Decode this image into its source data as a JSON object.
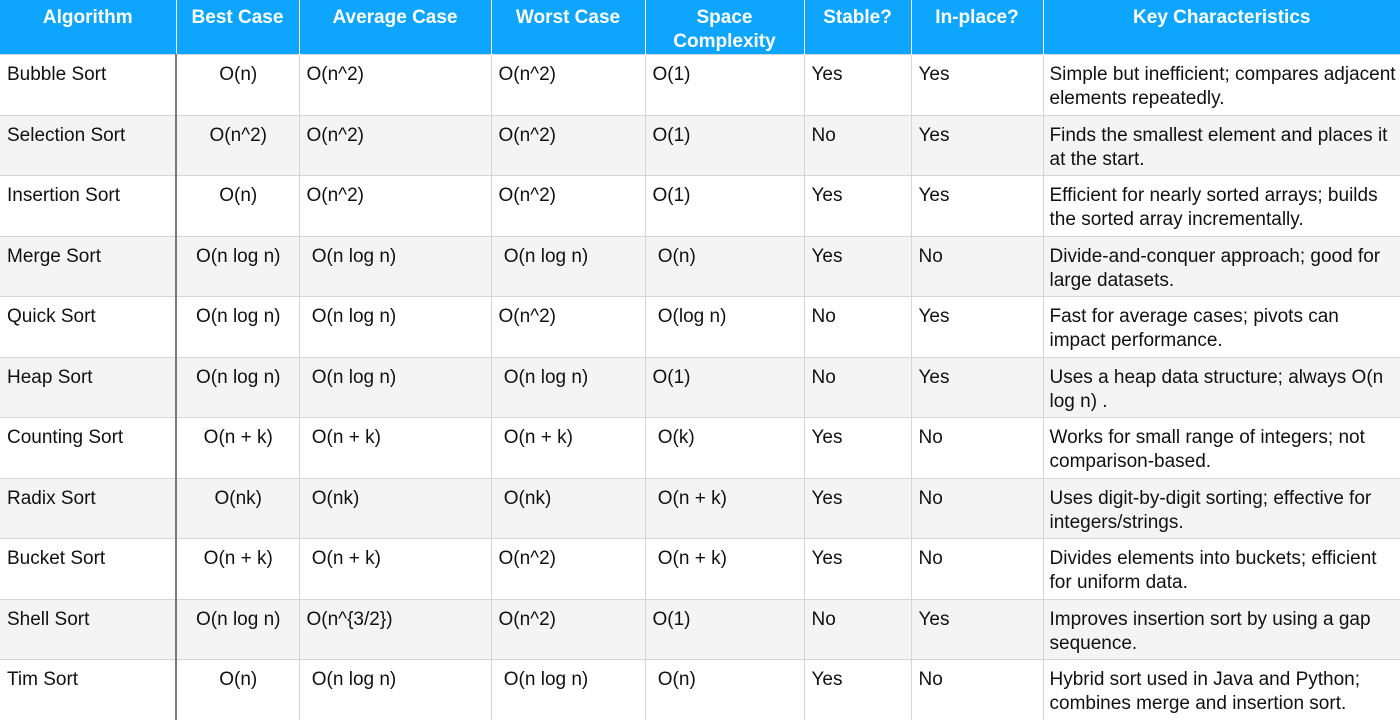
{
  "colors": {
    "header_bg": "#0ea5ff",
    "header_text": "#ffffff",
    "row_alt": "#f4f4f4"
  },
  "table": {
    "headers": [
      "Algorithm",
      "Best Case",
      "Average Case",
      "Worst Case",
      "Space Complexity",
      "Stable?",
      "In-place?",
      "Key Characteristics"
    ],
    "rows": [
      [
        "Bubble Sort",
        "O(n)",
        "O(n^2)",
        "O(n^2)",
        "O(1)",
        "Yes",
        "Yes",
        "Simple but inefficient; compares adjacent elements repeatedly."
      ],
      [
        "Selection Sort",
        "O(n^2)",
        "O(n^2)",
        "O(n^2)",
        "O(1)",
        "No",
        "Yes",
        "Finds the smallest element and places it at the start."
      ],
      [
        "Insertion Sort",
        "O(n)",
        "O(n^2)",
        "O(n^2)",
        "O(1)",
        "Yes",
        "Yes",
        "Efficient for nearly sorted arrays; builds the sorted array incrementally."
      ],
      [
        "Merge Sort",
        "O(n log n)",
        " O(n log n)",
        " O(n log n)",
        " O(n)",
        "Yes",
        "No",
        "Divide-and-conquer approach; good for large datasets."
      ],
      [
        "Quick Sort",
        "O(n log n)",
        " O(n log n)",
        "O(n^2)",
        " O(log n)",
        "No",
        "Yes",
        "Fast for average cases; pivots can impact performance."
      ],
      [
        "Heap Sort",
        "O(n log n)",
        " O(n log n)",
        " O(n log n)",
        "O(1)",
        "No",
        "Yes",
        "Uses a heap data structure; always O(n log n) ."
      ],
      [
        "Counting Sort",
        "O(n + k)",
        " O(n + k)",
        " O(n + k)",
        " O(k)",
        "Yes",
        "No",
        "Works for small range of integers; not comparison-based."
      ],
      [
        "Radix Sort",
        "O(nk)",
        " O(nk)",
        " O(nk)",
        " O(n + k)",
        "Yes",
        "No",
        "Uses digit-by-digit sorting; effective for integers/strings."
      ],
      [
        "Bucket Sort",
        "O(n + k)",
        " O(n + k)",
        "O(n^2)",
        " O(n + k)",
        "Yes",
        "No",
        "Divides elements into buckets; efficient for uniform data."
      ],
      [
        "Shell Sort",
        "O(n log n)",
        "O(n^{3/2})",
        "O(n^2)",
        "O(1)",
        "No",
        "Yes",
        "Improves insertion sort by using a gap sequence."
      ],
      [
        "Tim Sort",
        "O(n)",
        " O(n log n)",
        " O(n log n)",
        " O(n)",
        "Yes",
        "No",
        "Hybrid sort used in Java and Python; combines merge and insertion sort."
      ]
    ]
  }
}
